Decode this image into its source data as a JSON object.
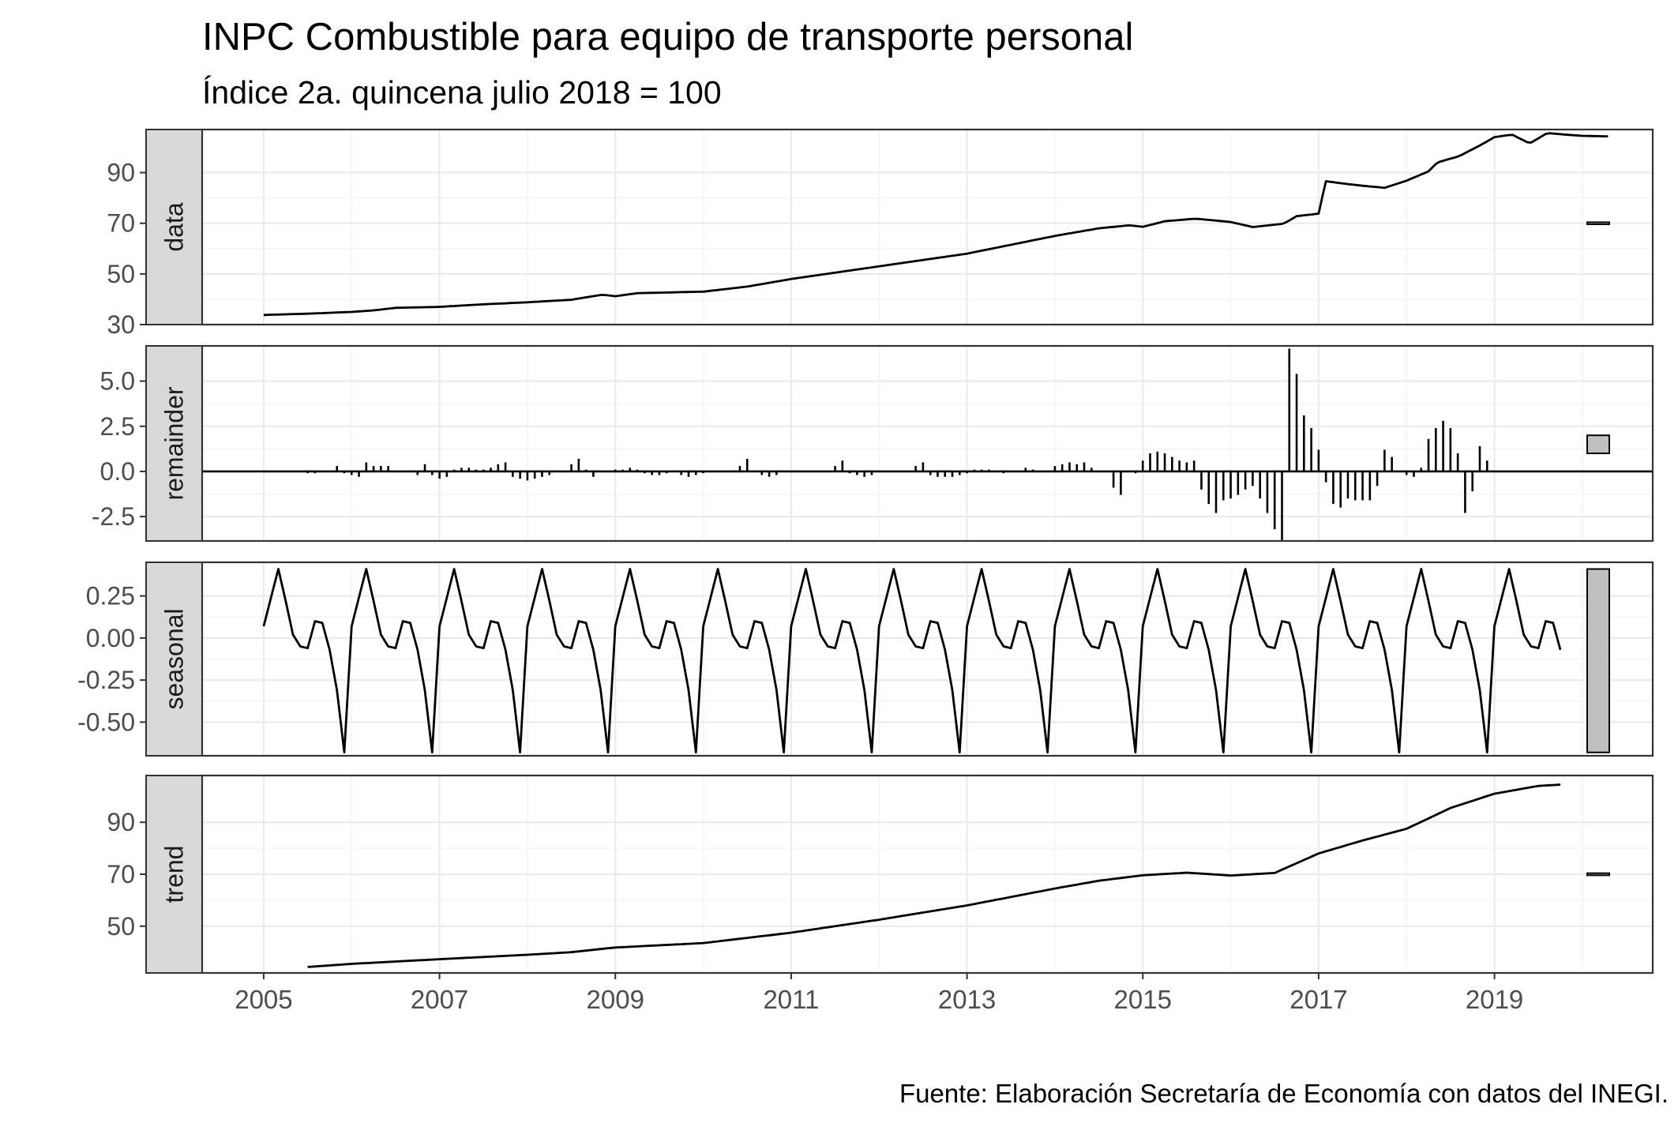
{
  "title": "INPC Combustible para equipo de transporte personal",
  "subtitle": "Índice 2a. quincena julio 2018 = 100",
  "caption": "Fuente: Elaboración Secretaría de Economía con datos del INEGI.",
  "colors": {
    "line": "#000000",
    "strip_fill": "#d9d9d9",
    "grid_major": "#ebebeb",
    "grid_minor": "#f5f5f5",
    "panel_border": "#333333",
    "axis_text": "#4d4d4d",
    "range_bar_fill": "#bfbfbf"
  },
  "chart_data": {
    "type": "line",
    "description_type": "stl-decomposition",
    "xlim": [
      2004.3,
      2020.8
    ],
    "x_ticks": [
      2005,
      2007,
      2009,
      2011,
      2013,
      2015,
      2017,
      2019
    ],
    "x_tick_labels": [
      "2005",
      "2007",
      "2009",
      "2011",
      "2013",
      "2015",
      "2017",
      "2019"
    ],
    "grid": true,
    "facets": [
      {
        "key": "data",
        "label": "data",
        "type": "line",
        "ylim": [
          30,
          107
        ],
        "y_ticks": [
          30,
          50,
          70,
          90
        ],
        "y_tick_labels": [
          "30",
          "50",
          "70",
          "90"
        ],
        "range_bar": [
          69.6,
          70.4
        ],
        "anchors": [
          [
            2005.0,
            33.8
          ],
          [
            2005.5,
            34.3
          ],
          [
            2006.0,
            35.0
          ],
          [
            2006.25,
            35.6
          ],
          [
            2006.5,
            36.6
          ],
          [
            2007.0,
            37.0
          ],
          [
            2007.5,
            38.0
          ],
          [
            2008.0,
            38.8
          ],
          [
            2008.5,
            39.8
          ],
          [
            2008.85,
            41.8
          ],
          [
            2009.0,
            41.2
          ],
          [
            2009.25,
            42.4
          ],
          [
            2009.5,
            42.6
          ],
          [
            2010.0,
            43.0
          ],
          [
            2010.5,
            45.0
          ],
          [
            2011.0,
            48.0
          ],
          [
            2011.5,
            50.5
          ],
          [
            2012.0,
            53.0
          ],
          [
            2012.5,
            55.5
          ],
          [
            2013.0,
            58.0
          ],
          [
            2013.5,
            61.5
          ],
          [
            2014.0,
            65.0
          ],
          [
            2014.5,
            68.0
          ],
          [
            2014.85,
            69.2
          ],
          [
            2015.0,
            68.6
          ],
          [
            2015.25,
            70.8
          ],
          [
            2015.6,
            71.8
          ],
          [
            2016.0,
            70.5
          ],
          [
            2016.25,
            68.5
          ],
          [
            2016.6,
            69.8
          ],
          [
            2016.75,
            72.8
          ],
          [
            2017.0,
            73.8
          ],
          [
            2017.08,
            86.6
          ],
          [
            2017.25,
            85.8
          ],
          [
            2017.5,
            84.8
          ],
          [
            2017.75,
            84.0
          ],
          [
            2018.0,
            86.8
          ],
          [
            2018.25,
            90.5
          ],
          [
            2018.35,
            94.0
          ],
          [
            2018.6,
            96.5
          ],
          [
            2018.85,
            101.0
          ],
          [
            2019.0,
            104.0
          ],
          [
            2019.2,
            105.0
          ],
          [
            2019.4,
            101.5
          ],
          [
            2019.6,
            105.6
          ],
          [
            2019.8,
            105.0
          ],
          [
            2020.0,
            104.5
          ],
          [
            2020.3,
            104.3
          ]
        ]
      },
      {
        "key": "remainder",
        "label": "remainder",
        "type": "bar",
        "ylim": [
          -3.85,
          6.95
        ],
        "y_ticks": [
          -2.5,
          0,
          2.5,
          5
        ],
        "y_tick_labels": [
          "-2.5",
          "0.0",
          "2.5",
          "5.0"
        ],
        "range_bar": [
          1.0,
          2.0
        ],
        "start": 2005.0,
        "step": 0.08333,
        "values": [
          0,
          0,
          0,
          0,
          0,
          0,
          -0.1,
          -0.1,
          0,
          0,
          0.3,
          -0.1,
          -0.2,
          -0.3,
          0.5,
          0.3,
          0.3,
          0.3,
          0,
          0,
          0,
          -0.2,
          0.4,
          -0.2,
          -0.4,
          -0.3,
          0.1,
          0.2,
          0.2,
          0.1,
          0.1,
          0.2,
          0.4,
          0.5,
          -0.3,
          -0.4,
          -0.5,
          -0.4,
          -0.3,
          -0.2,
          0,
          0,
          0.4,
          0.7,
          0.1,
          -0.3,
          0,
          0,
          0.1,
          0.1,
          0.2,
          0.1,
          -0.1,
          -0.2,
          -0.2,
          -0.1,
          0,
          -0.2,
          -0.3,
          -0.2,
          -0.1,
          0,
          0,
          0,
          0,
          0.3,
          0.7,
          0,
          -0.2,
          -0.3,
          -0.2,
          0,
          0,
          0,
          0,
          0,
          0,
          0,
          0.3,
          0.6,
          -0.1,
          -0.2,
          -0.3,
          -0.2,
          0,
          0,
          0,
          0,
          0,
          0.3,
          0.5,
          -0.2,
          -0.3,
          -0.3,
          -0.3,
          -0.2,
          -0.1,
          0.1,
          0.1,
          0.1,
          0,
          -0.1,
          0,
          0,
          0.2,
          0.1,
          0,
          0,
          0.3,
          0.4,
          0.5,
          0.4,
          0.5,
          0.2,
          0,
          0,
          -0.9,
          -1.3,
          0,
          -0.1,
          0.6,
          1.0,
          1.1,
          1.0,
          0.8,
          0.6,
          0.5,
          0.6,
          -1.0,
          -1.8,
          -2.3,
          -1.6,
          -1.5,
          -1.3,
          -1.0,
          -0.8,
          -1.5,
          -2.3,
          -3.2,
          -3.8,
          6.8,
          5.4,
          3.1,
          2.4,
          1.2,
          -0.6,
          -1.8,
          -2.0,
          -1.5,
          -1.6,
          -1.6,
          -1.6,
          -0.8,
          1.2,
          0.8,
          0,
          -0.2,
          -0.3,
          0.2,
          1.8,
          2.4,
          2.8,
          2.4,
          1.0,
          -2.3,
          -1.1,
          1.4,
          0.6
        ]
      },
      {
        "key": "seasonal",
        "label": "seasonal",
        "type": "line",
        "ylim": [
          -0.7,
          0.45
        ],
        "y_ticks": [
          -0.5,
          -0.25,
          0,
          0.25
        ],
        "y_tick_labels": [
          "-0.50",
          "-0.25",
          "0.00",
          "0.25"
        ],
        "range_bar": [
          -0.68,
          0.41
        ],
        "start": 2005.0,
        "step": 0.08333,
        "pattern": [
          0.07,
          0.24,
          0.41,
          0.22,
          0.02,
          -0.05,
          -0.06,
          0.1,
          0.09,
          -0.07,
          -0.31,
          -0.68
        ],
        "end": 2019.75
      },
      {
        "key": "trend",
        "label": "trend",
        "type": "line",
        "ylim": [
          32,
          108
        ],
        "y_ticks": [
          50,
          70,
          90
        ],
        "y_tick_labels": [
          "50",
          "70",
          "90"
        ],
        "range_bar": [
          69.6,
          70.4
        ],
        "anchors": [
          [
            2005.5,
            34.3
          ],
          [
            2006.0,
            35.5
          ],
          [
            2007.0,
            37.3
          ],
          [
            2008.0,
            39.0
          ],
          [
            2008.5,
            40.0
          ],
          [
            2009.0,
            41.8
          ],
          [
            2010.0,
            43.5
          ],
          [
            2011.0,
            47.5
          ],
          [
            2012.0,
            52.5
          ],
          [
            2013.0,
            58.0
          ],
          [
            2014.0,
            64.5
          ],
          [
            2014.5,
            67.5
          ],
          [
            2015.0,
            69.6
          ],
          [
            2015.5,
            70.6
          ],
          [
            2016.0,
            69.5
          ],
          [
            2016.5,
            70.5
          ],
          [
            2017.0,
            78.0
          ],
          [
            2017.5,
            83.0
          ],
          [
            2018.0,
            87.5
          ],
          [
            2018.5,
            95.5
          ],
          [
            2019.0,
            101.0
          ],
          [
            2019.5,
            104.0
          ],
          [
            2019.75,
            104.5
          ]
        ]
      }
    ]
  }
}
